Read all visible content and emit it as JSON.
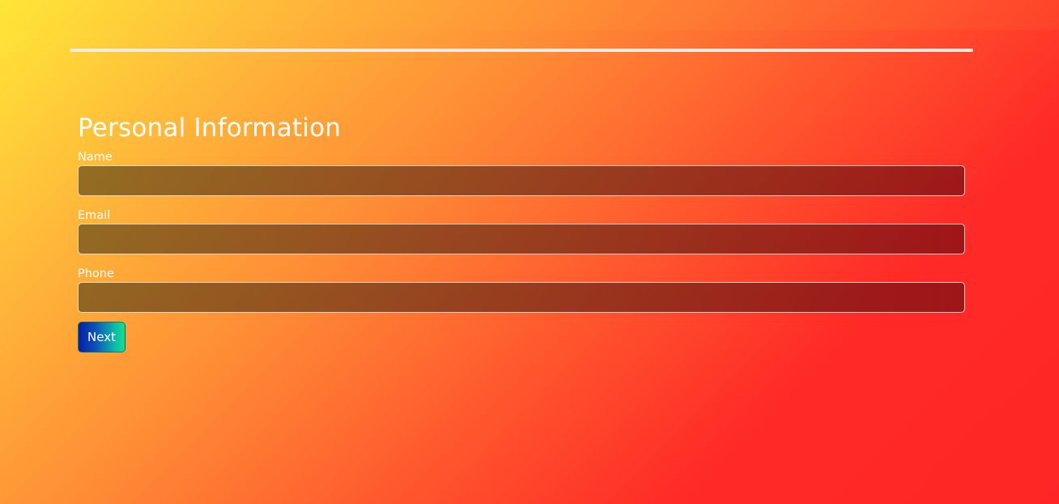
{
  "progress": {
    "value_percent": 100
  },
  "form": {
    "title": "Personal Information",
    "fields": [
      {
        "label": "Name",
        "value": "",
        "placeholder": ""
      },
      {
        "label": "Email",
        "value": "",
        "placeholder": ""
      },
      {
        "label": "Phone",
        "value": "",
        "placeholder": ""
      }
    ],
    "next_label": "Next"
  },
  "colors": {
    "background_start": "#ffe838",
    "background_end": "#ff2526",
    "button_start": "#0a1ea0",
    "button_end": "#13e08f",
    "progress_fill": "#f3ece7"
  }
}
